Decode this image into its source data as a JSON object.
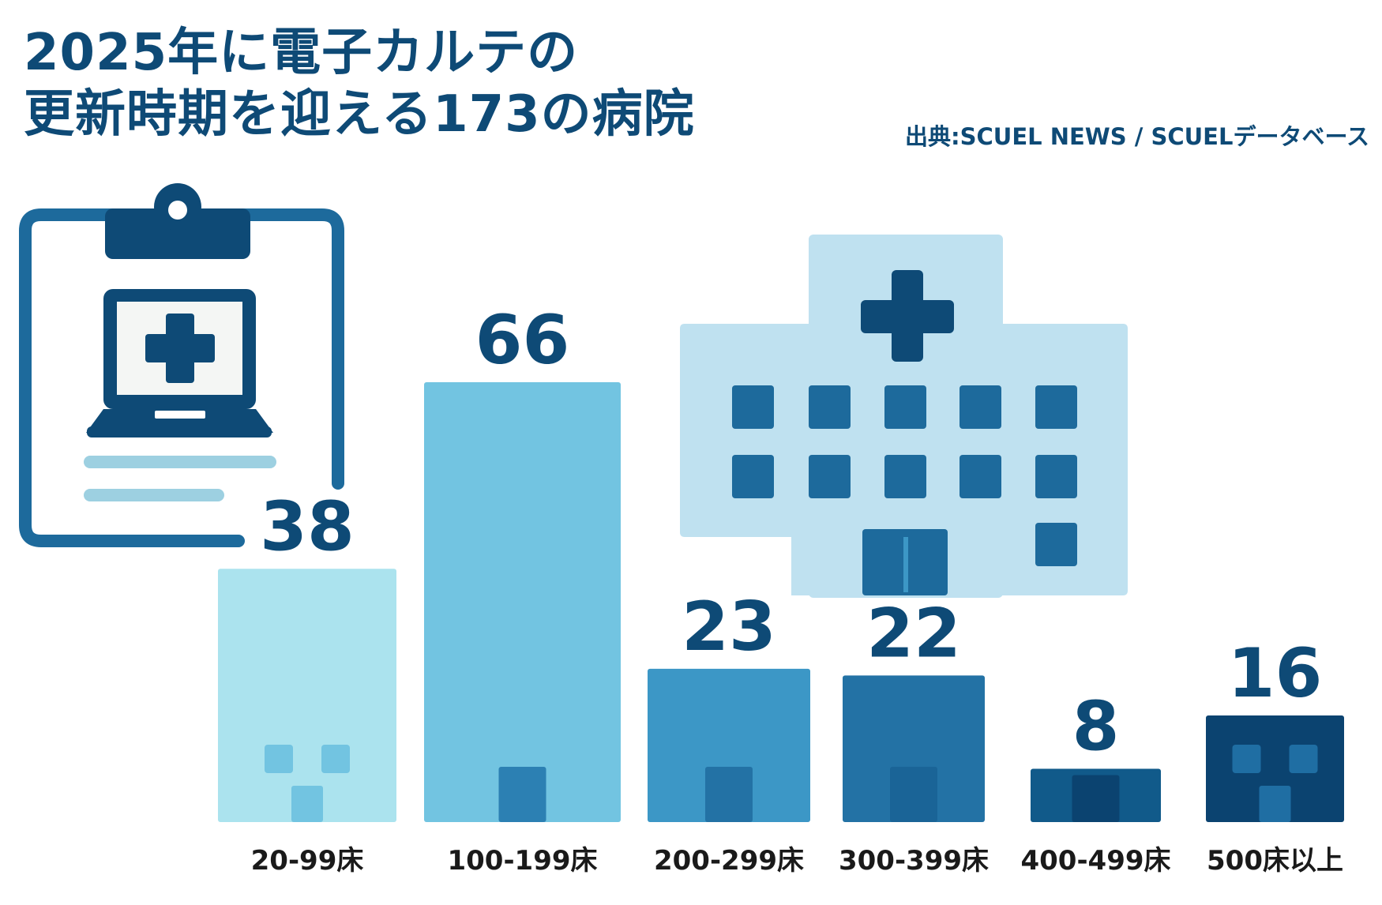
{
  "title_line1": "2025年に電子カルテの",
  "title_line2": "更新時期を迎える173の病院",
  "source": "出典:SCUEL NEWS / SCUELデータベース",
  "chart_data": {
    "type": "bar",
    "categories": [
      "20-99床",
      "100-199床",
      "200-299床",
      "300-399床",
      "400-499床",
      "500床以上"
    ],
    "values": [
      38,
      66,
      23,
      22,
      8,
      16
    ],
    "value_labels": [
      "38",
      "66",
      "23",
      "22",
      "8",
      "16"
    ],
    "ylim": [
      0,
      66
    ],
    "colors": [
      "#abe3ee",
      "#72c4e1",
      "#3c97c6",
      "#2372a5",
      "#115a8a",
      "#0b4370"
    ],
    "accent_colors": [
      "#72c4e1",
      "#2c80b3",
      "#2372a5",
      "#1a6497",
      "#0b4370",
      "#1f6ea3"
    ],
    "grid": false,
    "legend": "none"
  }
}
